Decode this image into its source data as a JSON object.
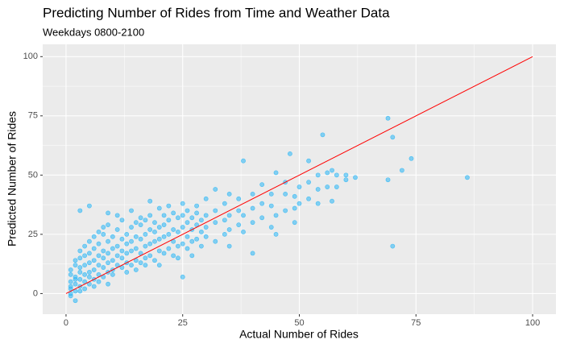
{
  "chart_data": {
    "type": "scatter",
    "title": "Predicting Number of Rides from Time and Weather Data",
    "subtitle": "Weekdays 0800-2100",
    "x_label": "Actual Number of Rides",
    "y_label": "Predicted Number of Rides",
    "color": "#29b6f6",
    "grid": true,
    "xlim": [
      -5,
      105
    ],
    "ylim": [
      -8.7,
      105.2
    ],
    "xticks": [
      0,
      25,
      50,
      75,
      100
    ],
    "yticks": [
      0,
      25,
      50,
      75,
      100
    ],
    "reference_line": {
      "x": [
        0,
        100
      ],
      "y": [
        0,
        100
      ],
      "color": "#ff0000"
    },
    "x": [
      1,
      1,
      1,
      1,
      1,
      1,
      1,
      2,
      2,
      2,
      2,
      2,
      2,
      2,
      3,
      3,
      3,
      3,
      3,
      3,
      3,
      4,
      4,
      4,
      4,
      4,
      4,
      5,
      5,
      5,
      5,
      5,
      5,
      6,
      6,
      6,
      6,
      6,
      6,
      7,
      7,
      7,
      7,
      7,
      7,
      8,
      8,
      8,
      8,
      8,
      8,
      9,
      9,
      9,
      9,
      9,
      9,
      10,
      10,
      10,
      10,
      10,
      11,
      11,
      11,
      11,
      11,
      12,
      12,
      12,
      12,
      12,
      13,
      13,
      13,
      13,
      13,
      14,
      14,
      14,
      14,
      14,
      15,
      15,
      15,
      15,
      15,
      16,
      16,
      16,
      16,
      16,
      17,
      17,
      17,
      17,
      17,
      18,
      18,
      18,
      18,
      18,
      19,
      19,
      19,
      19,
      20,
      20,
      20,
      20,
      20,
      21,
      21,
      21,
      21,
      22,
      22,
      22,
      22,
      23,
      23,
      23,
      23,
      24,
      24,
      24,
      24,
      25,
      25,
      25,
      25,
      25,
      26,
      26,
      26,
      26,
      27,
      27,
      27,
      27,
      28,
      28,
      28,
      28,
      29,
      29,
      29,
      30,
      30,
      30,
      30,
      32,
      32,
      32,
      32,
      34,
      34,
      34,
      35,
      35,
      35,
      35,
      37,
      37,
      37,
      38,
      38,
      38,
      40,
      40,
      40,
      40,
      42,
      42,
      42,
      44,
      44,
      44,
      45,
      45,
      45,
      47,
      47,
      47,
      49,
      49,
      49,
      50,
      50,
      52,
      52,
      52,
      54,
      54,
      54,
      56,
      56,
      57,
      57,
      58,
      58,
      60,
      60,
      62,
      69,
      69,
      70,
      70,
      72,
      74,
      86,
      3,
      5,
      9,
      55,
      48
    ],
    "values": [
      2,
      5,
      8,
      10,
      -1,
      0,
      3,
      1,
      4,
      7,
      12,
      14,
      -3,
      6,
      3,
      6,
      9,
      11,
      15,
      18,
      1,
      5,
      8,
      12,
      16,
      2,
      20,
      4,
      9,
      13,
      17,
      22,
      7,
      6,
      10,
      14,
      19,
      24,
      3,
      8,
      12,
      16,
      21,
      26,
      5,
      7,
      11,
      15,
      18,
      25,
      28,
      9,
      13,
      17,
      22,
      29,
      4,
      10,
      14,
      19,
      24,
      8,
      12,
      16,
      20,
      27,
      33,
      11,
      15,
      18,
      23,
      31,
      13,
      17,
      21,
      25,
      9,
      12,
      18,
      22,
      28,
      35,
      14,
      19,
      24,
      30,
      10,
      13,
      17,
      23,
      29,
      32,
      15,
      20,
      25,
      31,
      12,
      16,
      21,
      27,
      33,
      39,
      14,
      22,
      26,
      30,
      18,
      23,
      28,
      36,
      12,
      17,
      24,
      29,
      33,
      19,
      25,
      31,
      37,
      16,
      22,
      27,
      34,
      20,
      26,
      32,
      15,
      21,
      28,
      33,
      38,
      7,
      19,
      24,
      30,
      35,
      22,
      27,
      32,
      16,
      23,
      29,
      34,
      37,
      20,
      26,
      31,
      24,
      28,
      33,
      40,
      22,
      30,
      35,
      44,
      25,
      31,
      38,
      20,
      27,
      33,
      42,
      29,
      35,
      40,
      26,
      33,
      56,
      30,
      36,
      42,
      17,
      32,
      38,
      46,
      28,
      37,
      42,
      33,
      51,
      25,
      35,
      47,
      42,
      36,
      41,
      30,
      38,
      45,
      40,
      56,
      47,
      38,
      44,
      50,
      51,
      45,
      52,
      39,
      45,
      50,
      50,
      48,
      49,
      74,
      48,
      66,
      20,
      52,
      57,
      49,
      35,
      37,
      34,
      67,
      59
    ]
  }
}
